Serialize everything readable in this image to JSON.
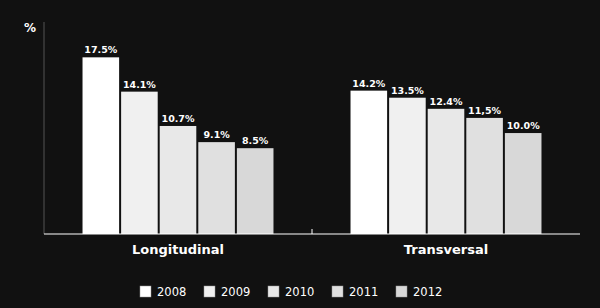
{
  "chart_data": {
    "type": "bar",
    "y_label": "%",
    "categories": [
      "Longitudinal",
      "Transversal"
    ],
    "series": [
      {
        "name": "2008",
        "color": "#ffffff",
        "values": [
          17.5,
          14.2
        ],
        "value_labels": [
          "17.5%",
          "14.2%"
        ]
      },
      {
        "name": "2009",
        "color": "#f0f0f0",
        "values": [
          14.1,
          13.5
        ],
        "value_labels": [
          "14.1%",
          "13.5%"
        ]
      },
      {
        "name": "2010",
        "color": "#e8e8e8",
        "values": [
          10.7,
          12.4
        ],
        "value_labels": [
          "10.7%",
          "12.4%"
        ]
      },
      {
        "name": "2011",
        "color": "#e0e0e0",
        "values": [
          9.1,
          11.5
        ],
        "value_labels": [
          "9.1%",
          "11,5%"
        ]
      },
      {
        "name": "2012",
        "color": "#d8d8d8",
        "values": [
          8.5,
          10.0
        ],
        "value_labels": [
          "8.5%",
          "10.0%"
        ]
      }
    ],
    "ylim": [
      0,
      21
    ],
    "legend": "bottom",
    "data_labels": true,
    "tick_labels": "x"
  }
}
